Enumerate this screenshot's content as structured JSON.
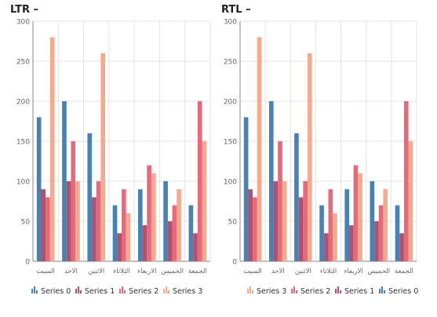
{
  "colors": {
    "series": [
      "#4682b4",
      "#b0526d",
      "#e8687c",
      "#f5a98f"
    ],
    "grid": "#e4e4e4",
    "axis": "#888888",
    "tick_text": "#666666"
  },
  "chart_data": [
    {
      "type": "bar",
      "title": "LTR –",
      "categories": [
        "السبت",
        "الاحد",
        "الاثنين",
        "الثلاثاء",
        "الاربعاء",
        "الخميس",
        "الجمعة"
      ],
      "direction": "ltr",
      "ylim": [
        0,
        300
      ],
      "yticks": [
        "0",
        "50",
        "100",
        "150",
        "200",
        "250",
        "300"
      ],
      "grid": true,
      "legend_position": "bottom",
      "series": [
        {
          "name": "Series 0",
          "values": [
            180,
            200,
            160,
            70,
            90,
            100,
            70
          ]
        },
        {
          "name": "Series 1",
          "values": [
            90,
            100,
            80,
            35,
            45,
            50,
            35
          ]
        },
        {
          "name": "Series 2",
          "values": [
            80,
            150,
            100,
            90,
            120,
            70,
            200
          ]
        },
        {
          "name": "Series 3",
          "values": [
            280,
            100,
            260,
            60,
            110,
            90,
            150
          ]
        }
      ]
    },
    {
      "type": "bar",
      "title": "RTL –",
      "categories": [
        "السبت",
        "الاحد",
        "الاثنين",
        "الثلاثاء",
        "الاربعاء",
        "الخميس",
        "الجمعة"
      ],
      "direction": "rtl",
      "ylim": [
        0,
        300
      ],
      "yticks": [
        "0",
        "50",
        "100",
        "150",
        "200",
        "250",
        "300"
      ],
      "grid": true,
      "legend_position": "bottom",
      "series": [
        {
          "name": "Series 0",
          "values": [
            180,
            200,
            160,
            70,
            90,
            100,
            70
          ]
        },
        {
          "name": "Series 1",
          "values": [
            90,
            100,
            80,
            35,
            45,
            50,
            35
          ]
        },
        {
          "name": "Series 2",
          "values": [
            80,
            150,
            100,
            90,
            120,
            70,
            200
          ]
        },
        {
          "name": "Series 3",
          "values": [
            280,
            100,
            260,
            60,
            110,
            90,
            150
          ]
        }
      ]
    }
  ]
}
